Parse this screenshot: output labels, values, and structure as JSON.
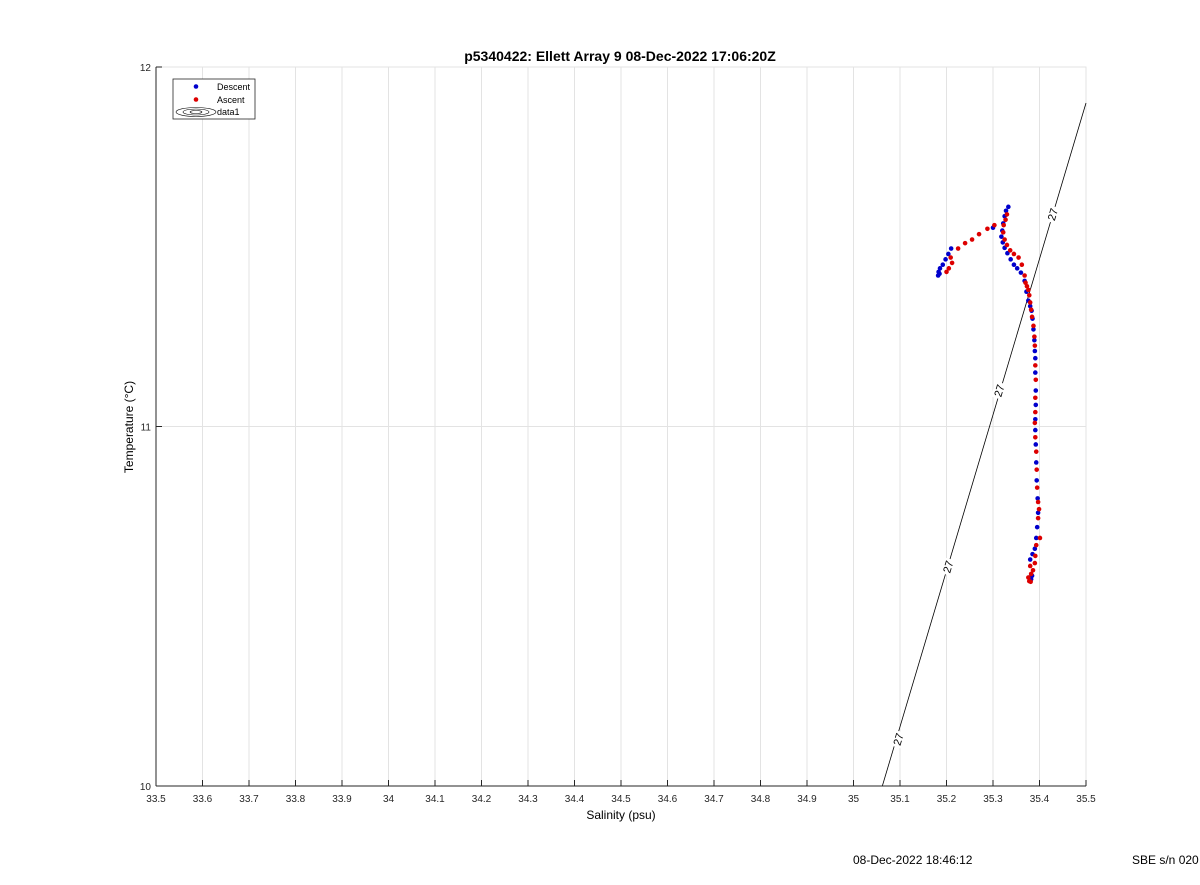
{
  "chart_data": {
    "type": "scatter",
    "title": "p5340422: Ellett Array 9 08-Dec-2022 17:06:20Z",
    "xlabel": "Salinity (psu)",
    "ylabel": "Temperature (°C)",
    "xlim": [
      33.5,
      35.5
    ],
    "ylim": [
      10,
      12
    ],
    "xticks": [
      "33.5",
      "33.6",
      "33.7",
      "33.8",
      "33.9",
      "34",
      "34.1",
      "34.2",
      "34.3",
      "34.4",
      "34.5",
      "34.6",
      "34.7",
      "34.8",
      "34.9",
      "35",
      "35.1",
      "35.2",
      "35.3",
      "35.4",
      "35.5"
    ],
    "yticks": [
      "10",
      "11",
      "12"
    ],
    "grid": true,
    "legend_position": "top-left",
    "legend": [
      {
        "label": "Descent",
        "color": "#0000cc"
      },
      {
        "label": "Ascent",
        "color": "#dd0000"
      },
      {
        "label": "data1",
        "marker": "contour"
      }
    ],
    "series": [
      {
        "name": "Descent",
        "color": "#0000cc",
        "points": [
          [
            35.333,
            11.611
          ],
          [
            35.328,
            11.6
          ],
          [
            35.325,
            11.585
          ],
          [
            35.322,
            11.565
          ],
          [
            35.32,
            11.545
          ],
          [
            35.318,
            11.528
          ],
          [
            35.321,
            11.512
          ],
          [
            35.325,
            11.497
          ],
          [
            35.331,
            11.482
          ],
          [
            35.338,
            11.465
          ],
          [
            35.345,
            11.45
          ],
          [
            35.352,
            11.44
          ],
          [
            35.36,
            11.428
          ],
          [
            35.368,
            11.405
          ],
          [
            35.372,
            11.375
          ],
          [
            35.376,
            11.35
          ],
          [
            35.38,
            11.335
          ],
          [
            35.383,
            11.322
          ],
          [
            35.385,
            11.3
          ],
          [
            35.387,
            11.27
          ],
          [
            35.389,
            11.24
          ],
          [
            35.39,
            11.21
          ],
          [
            35.391,
            11.19
          ],
          [
            35.391,
            11.15
          ],
          [
            35.392,
            11.1
          ],
          [
            35.392,
            11.06
          ],
          [
            35.391,
            11.02
          ],
          [
            35.391,
            10.99
          ],
          [
            35.392,
            10.95
          ],
          [
            35.393,
            10.9
          ],
          [
            35.394,
            10.85
          ],
          [
            35.396,
            10.8
          ],
          [
            35.397,
            10.76
          ],
          [
            35.395,
            10.72
          ],
          [
            35.393,
            10.69
          ],
          [
            35.39,
            10.66
          ],
          [
            35.385,
            10.645
          ],
          [
            35.38,
            10.63
          ],
          [
            35.378,
            10.58
          ],
          [
            35.382,
            10.575
          ],
          [
            35.384,
            10.585
          ],
          [
            35.21,
            11.495
          ],
          [
            35.204,
            11.48
          ],
          [
            35.198,
            11.465
          ],
          [
            35.192,
            11.45
          ],
          [
            35.186,
            11.44
          ],
          [
            35.183,
            11.43
          ],
          [
            35.182,
            11.42
          ],
          [
            35.185,
            11.425
          ],
          [
            35.3,
            11.553
          ]
        ]
      },
      {
        "name": "Ascent",
        "color": "#dd0000",
        "points": [
          [
            35.33,
            11.59
          ],
          [
            35.327,
            11.575
          ],
          [
            35.323,
            11.56
          ],
          [
            35.322,
            11.54
          ],
          [
            35.325,
            11.52
          ],
          [
            35.33,
            11.505
          ],
          [
            35.337,
            11.49
          ],
          [
            35.345,
            11.48
          ],
          [
            35.355,
            11.47
          ],
          [
            35.362,
            11.45
          ],
          [
            35.368,
            11.42
          ],
          [
            35.37,
            11.4
          ],
          [
            35.373,
            11.39
          ],
          [
            35.376,
            11.38
          ],
          [
            35.378,
            11.365
          ],
          [
            35.38,
            11.345
          ],
          [
            35.382,
            11.325
          ],
          [
            35.384,
            11.305
          ],
          [
            35.387,
            11.28
          ],
          [
            35.389,
            11.25
          ],
          [
            35.39,
            11.225
          ],
          [
            35.391,
            11.17
          ],
          [
            35.392,
            11.13
          ],
          [
            35.391,
            11.08
          ],
          [
            35.391,
            11.04
          ],
          [
            35.39,
            11.01
          ],
          [
            35.391,
            10.97
          ],
          [
            35.393,
            10.93
          ],
          [
            35.394,
            10.88
          ],
          [
            35.395,
            10.83
          ],
          [
            35.397,
            10.79
          ],
          [
            35.399,
            10.77
          ],
          [
            35.397,
            10.745
          ],
          [
            35.401,
            10.69
          ],
          [
            35.393,
            10.67
          ],
          [
            35.391,
            10.64
          ],
          [
            35.39,
            10.62
          ],
          [
            35.386,
            10.6
          ],
          [
            35.382,
            10.59
          ],
          [
            35.376,
            10.58
          ],
          [
            35.378,
            10.57
          ],
          [
            35.381,
            10.568
          ],
          [
            35.38,
            10.612
          ],
          [
            35.209,
            11.47
          ],
          [
            35.212,
            11.455
          ],
          [
            35.205,
            11.44
          ],
          [
            35.2,
            11.43
          ],
          [
            35.225,
            11.495
          ],
          [
            35.24,
            11.51
          ],
          [
            35.255,
            11.52
          ],
          [
            35.27,
            11.535
          ],
          [
            35.288,
            11.55
          ],
          [
            35.303,
            11.56
          ]
        ]
      }
    ],
    "isopycnal": {
      "label": "27",
      "line": [
        [
          35.062,
          10.0
        ],
        [
          35.5,
          11.9
        ]
      ],
      "label_positions": [
        [
          35.096,
          10.13
        ],
        [
          35.203,
          10.61
        ],
        [
          35.313,
          11.1
        ],
        [
          35.428,
          11.59
        ]
      ]
    },
    "footer_date": "08-Dec-2022 18:46:12",
    "footer_sn": "SBE s/n 020"
  }
}
